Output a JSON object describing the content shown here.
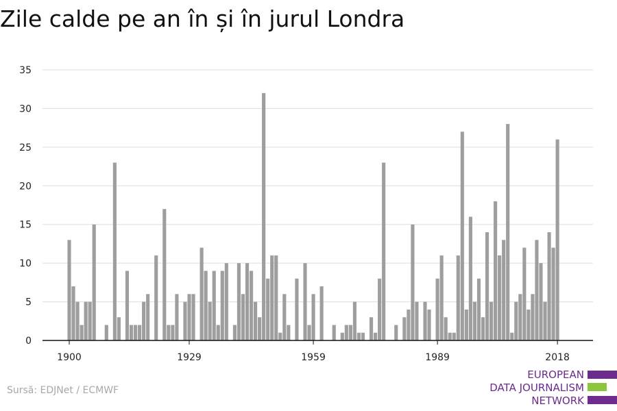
{
  "title": "Zile calde pe an în și în jurul Londra",
  "source": "Sursă: EDJNet / ECMWF",
  "logo": {
    "lines": [
      "EUROPEAN",
      "DATA JOURNALISM",
      "NETWORK"
    ],
    "colors": {
      "purple": "#6d2a8f",
      "green": "#8cc63f"
    }
  },
  "colors": {
    "bar": "#9e9e9e",
    "grid": "#dddddd",
    "axis": "#111111"
  },
  "chart_data": {
    "type": "bar",
    "x": [
      1900,
      1901,
      1902,
      1903,
      1904,
      1905,
      1906,
      1907,
      1908,
      1909,
      1910,
      1911,
      1912,
      1913,
      1914,
      1915,
      1916,
      1917,
      1918,
      1919,
      1920,
      1921,
      1922,
      1923,
      1924,
      1925,
      1926,
      1927,
      1928,
      1929,
      1930,
      1931,
      1932,
      1933,
      1934,
      1935,
      1936,
      1937,
      1938,
      1939,
      1940,
      1941,
      1942,
      1943,
      1944,
      1945,
      1946,
      1947,
      1948,
      1949,
      1950,
      1951,
      1952,
      1953,
      1954,
      1955,
      1956,
      1957,
      1958,
      1959,
      1960,
      1961,
      1962,
      1963,
      1964,
      1965,
      1966,
      1967,
      1968,
      1969,
      1970,
      1971,
      1972,
      1973,
      1974,
      1975,
      1976,
      1977,
      1978,
      1979,
      1980,
      1981,
      1982,
      1983,
      1984,
      1985,
      1986,
      1987,
      1988,
      1989,
      1990,
      1991,
      1992,
      1993,
      1994,
      1995,
      1996,
      1997,
      1998,
      1999,
      2000,
      2001,
      2002,
      2003,
      2004,
      2005,
      2006,
      2007,
      2008,
      2009,
      2010,
      2011,
      2012,
      2013,
      2014,
      2015,
      2016,
      2017,
      2018
    ],
    "values": [
      13,
      7,
      5,
      2,
      5,
      5,
      15,
      0,
      0,
      2,
      0,
      23,
      3,
      0,
      9,
      2,
      2,
      2,
      5,
      6,
      0,
      11,
      0,
      17,
      2,
      2,
      6,
      0,
      5,
      6,
      6,
      0,
      12,
      9,
      5,
      9,
      2,
      9,
      10,
      0,
      2,
      10,
      6,
      10,
      9,
      5,
      3,
      32,
      8,
      11,
      11,
      1,
      6,
      2,
      0,
      8,
      0,
      10,
      2,
      6,
      0,
      7,
      0,
      0,
      2,
      0,
      1,
      2,
      2,
      5,
      1,
      1,
      0,
      3,
      1,
      8,
      23,
      0,
      0,
      2,
      0,
      3,
      4,
      15,
      5,
      0,
      5,
      4,
      0,
      8,
      11,
      3,
      1,
      1,
      11,
      27,
      4,
      16,
      5,
      8,
      3,
      14,
      5,
      18,
      11,
      13,
      28,
      1,
      5,
      6,
      12,
      4,
      6,
      13,
      10,
      5,
      14,
      12,
      26
    ],
    "x_ticks": [
      1900,
      1929,
      1959,
      1989,
      2018
    ],
    "y_ticks": [
      0,
      5,
      10,
      15,
      20,
      25,
      30,
      35
    ],
    "ylim": [
      0,
      35
    ],
    "grid": true,
    "xlabel": "",
    "ylabel": ""
  }
}
